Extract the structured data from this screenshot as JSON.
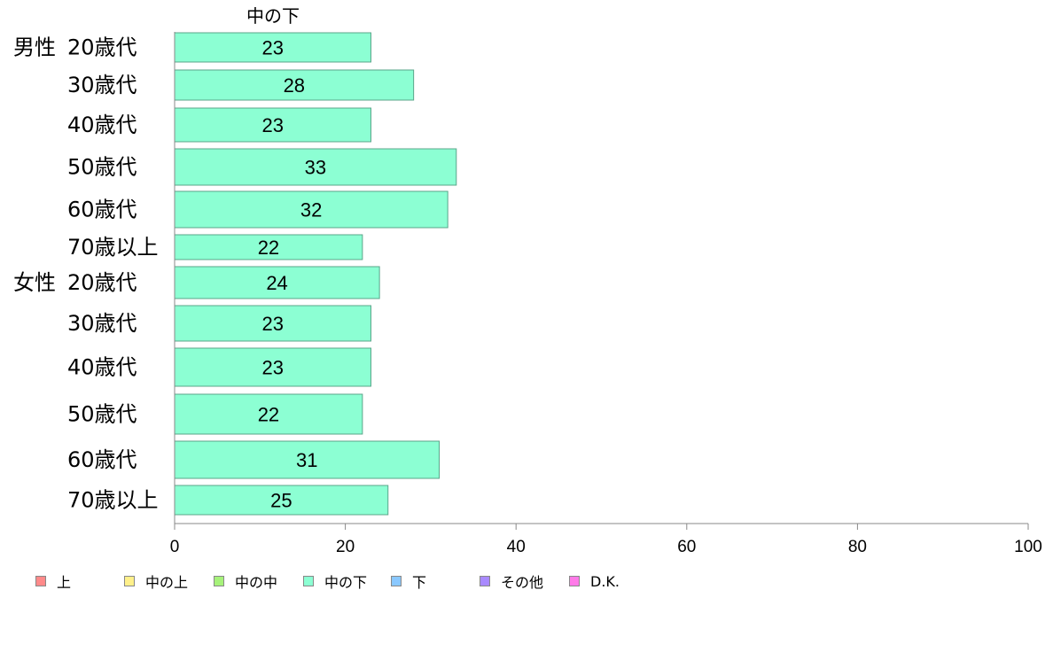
{
  "chart_data": {
    "type": "bar",
    "orientation": "horizontal",
    "title": "中の下",
    "groups": [
      {
        "label": "男性",
        "categories": [
          "20歳代",
          "30歳代",
          "40歳代",
          "50歳代",
          "60歳代",
          "70歳以上"
        ],
        "values": [
          23,
          28,
          23,
          33,
          32,
          22
        ]
      },
      {
        "label": "女性",
        "categories": [
          "20歳代",
          "30歳代",
          "40歳代",
          "50歳代",
          "60歳代",
          "70歳以上"
        ],
        "values": [
          24,
          23,
          23,
          22,
          31,
          25
        ]
      }
    ],
    "xlim": [
      0,
      100
    ],
    "xticks": [
      0,
      20,
      40,
      60,
      80,
      100
    ],
    "bar_color": "#8cffd3",
    "legend": [
      {
        "label": "上",
        "color": "#ff8a8a"
      },
      {
        "label": "中の上",
        "color": "#fff08a"
      },
      {
        "label": "中の中",
        "color": "#a6f27a"
      },
      {
        "label": "中の下",
        "color": "#8cffd3"
      },
      {
        "label": "下",
        "color": "#8ac8ff"
      },
      {
        "label": "その他",
        "color": "#a98aff"
      },
      {
        "label": "D.K.",
        "color": "#ff7ae8"
      }
    ],
    "legend_position": "bottom"
  }
}
